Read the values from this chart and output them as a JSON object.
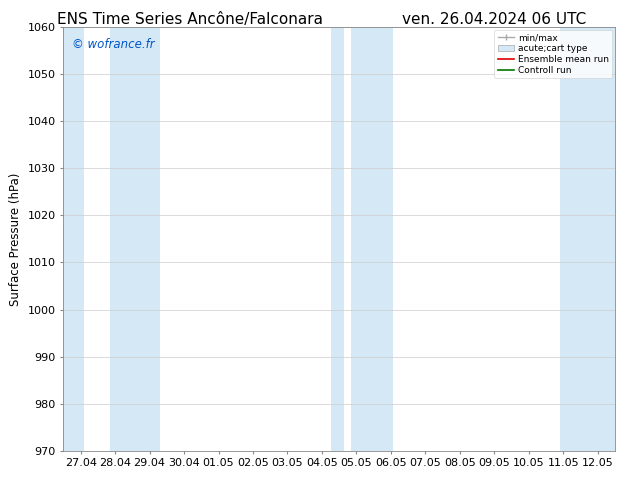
{
  "title_left": "ENS Time Series Ancône/Falconara",
  "title_right": "ven. 26.04.2024 06 UTC",
  "ylabel": "Surface Pressure (hPa)",
  "ylim": [
    970,
    1060
  ],
  "yticks": [
    970,
    980,
    990,
    1000,
    1010,
    1020,
    1030,
    1040,
    1050,
    1060
  ],
  "x_labels": [
    "27.04",
    "28.04",
    "29.04",
    "30.04",
    "01.05",
    "02.05",
    "03.05",
    "04.05",
    "05.05",
    "06.05",
    "07.05",
    "08.05",
    "09.05",
    "10.05",
    "11.05",
    "12.05"
  ],
  "watermark": "© wofrance.fr",
  "watermark_color": "#0055cc",
  "bg_color": "#ffffff",
  "plot_bg_color": "#ffffff",
  "shaded_band_color": "#d4e8f5",
  "shaded_ranges": [
    [
      0,
      1
    ],
    [
      1,
      3
    ],
    [
      7,
      9
    ],
    [
      14,
      16
    ]
  ],
  "legend_entries": [
    "min/max",
    "acute;cart type",
    "Ensemble mean run",
    "Controll run"
  ],
  "title_fontsize": 11,
  "label_fontsize": 8,
  "ylabel_fontsize": 8.5
}
